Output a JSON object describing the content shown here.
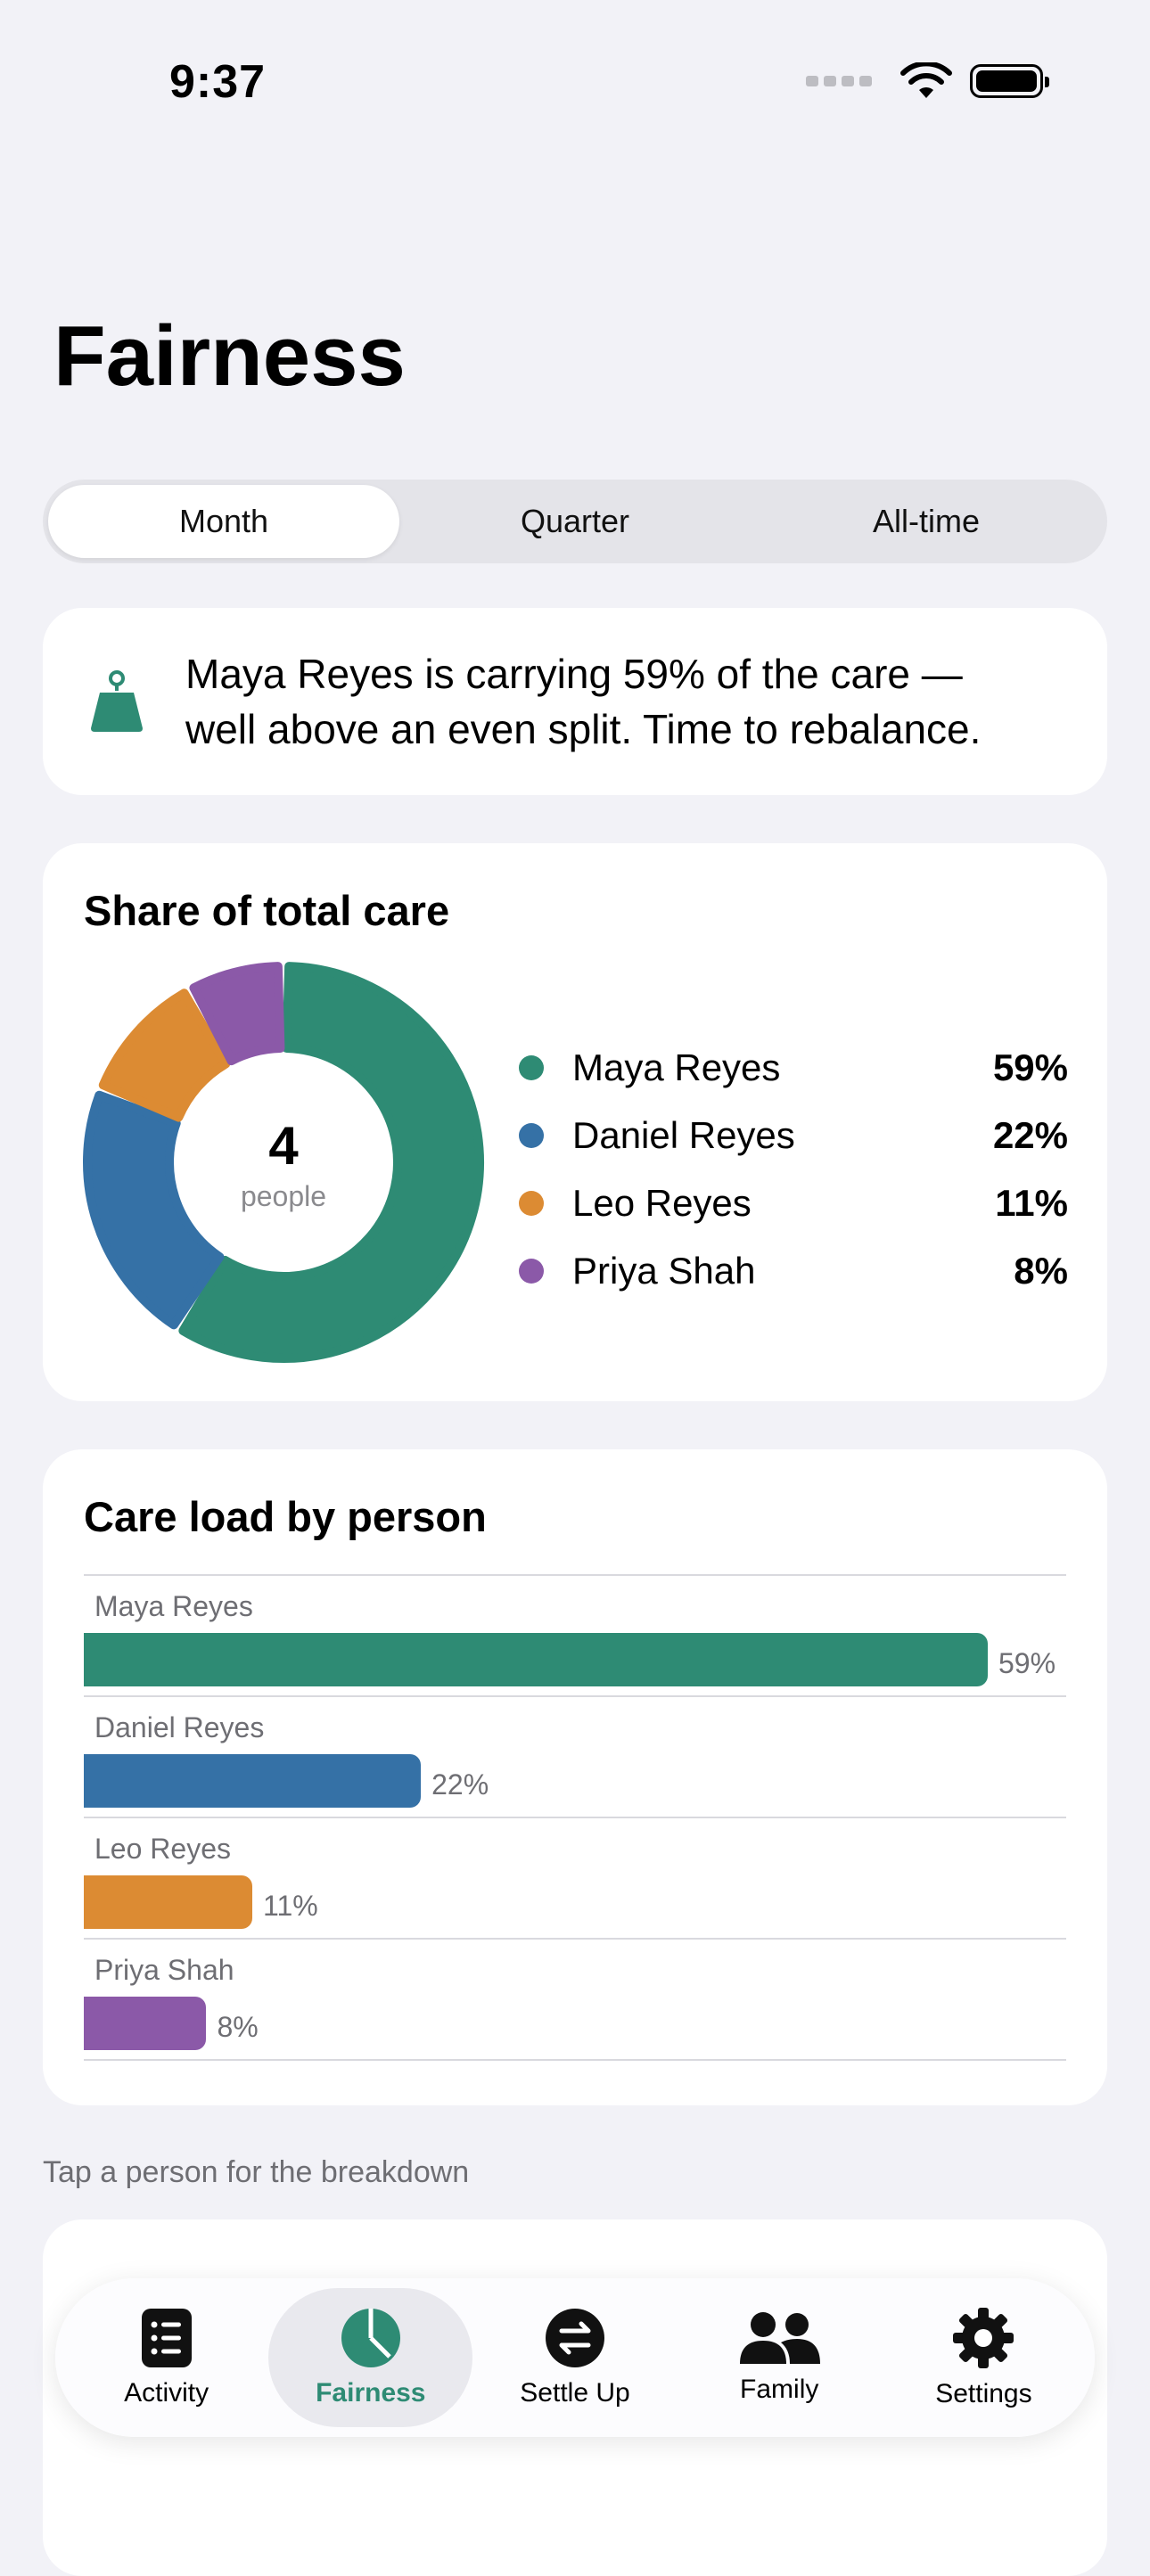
{
  "status": {
    "time": "9:37"
  },
  "header": {
    "title": "Fairness"
  },
  "segments": [
    {
      "label": "Month",
      "selected": true
    },
    {
      "label": "Quarter",
      "selected": false
    },
    {
      "label": "All-time",
      "selected": false
    }
  ],
  "insight": {
    "icon": "scale-weight-icon",
    "line1": "Maya Reyes is carrying 59% of the care —",
    "line2": "well above an even split. Time to rebalance."
  },
  "share_card": {
    "title": "Share of total care",
    "center_value": "4",
    "center_label": "people"
  },
  "bars_card": {
    "title": "Care load by person"
  },
  "people": [
    {
      "name": "Maya Reyes",
      "share": 59,
      "label": "59%",
      "color": "#2e8b74"
    },
    {
      "name": "Daniel Reyes",
      "share": 22,
      "label": "22%",
      "color": "#3571a6"
    },
    {
      "name": "Leo Reyes",
      "share": 11,
      "label": "11%",
      "color": "#dc8b33"
    },
    {
      "name": "Priya Shah",
      "share": 8,
      "label": "8%",
      "color": "#8b59a8"
    }
  ],
  "chart_data": [
    {
      "type": "pie",
      "title": "Share of total care",
      "categories": [
        "Maya Reyes",
        "Daniel Reyes",
        "Leo Reyes",
        "Priya Shah"
      ],
      "values": [
        59,
        22,
        11,
        8
      ],
      "legend": "right"
    },
    {
      "type": "bar",
      "title": "Care load by person",
      "categories": [
        "Maya Reyes",
        "Daniel Reyes",
        "Leo Reyes",
        "Priya Shah"
      ],
      "values": [
        59,
        22,
        11,
        8
      ],
      "xlim": [
        0,
        59
      ]
    }
  ],
  "hint": "Tap a person for the breakdown",
  "tabs": [
    {
      "label": "Activity",
      "icon": "list-icon",
      "selected": false
    },
    {
      "label": "Fairness",
      "icon": "pie-chart-icon",
      "selected": true
    },
    {
      "label": "Settle Up",
      "icon": "swap-arrows-icon",
      "selected": false
    },
    {
      "label": "Family",
      "icon": "people-icon",
      "selected": false
    },
    {
      "label": "Settings",
      "icon": "gear-icon",
      "selected": false
    }
  ]
}
